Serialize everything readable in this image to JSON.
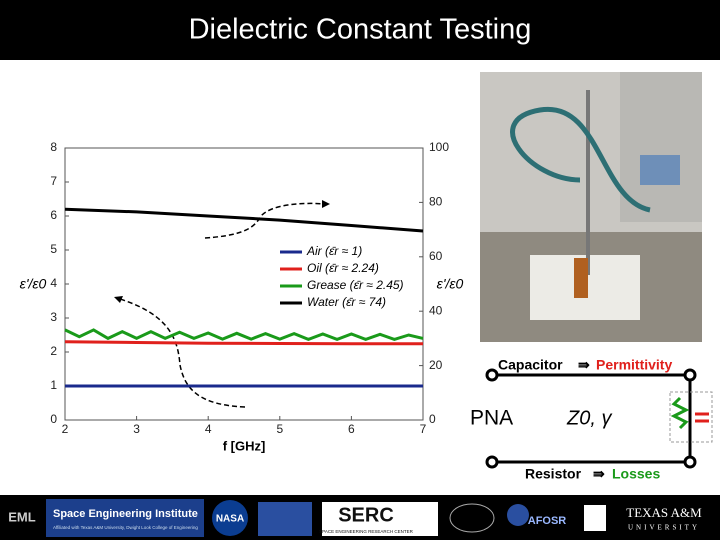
{
  "header": {
    "title": "Dielectric Constant Testing"
  },
  "chart_data": {
    "type": "line",
    "xlabel": "f [GHz]",
    "ylabel": "ε'/ε0",
    "y2label": "ε'/ε0",
    "xlim": [
      2,
      7
    ],
    "xticks": [
      2,
      3,
      4,
      5,
      6,
      7
    ],
    "ylim": [
      0,
      8
    ],
    "yticks": [
      0,
      1,
      2,
      3,
      4,
      5,
      6,
      7,
      8
    ],
    "y2lim": [
      0,
      100
    ],
    "y2ticks": [
      0,
      20,
      40,
      60,
      80,
      100
    ],
    "series": [
      {
        "name": "Air (ε̄r ≈ 1)",
        "color": "#1a2a8c",
        "x": [
          2,
          3,
          4,
          5,
          6,
          7
        ],
        "values": [
          1,
          1,
          1,
          1,
          1,
          1
        ]
      },
      {
        "name": "Oil (ε̄r ≈ 2.24)",
        "color": "#e0201c",
        "x": [
          2,
          3,
          4,
          5,
          6,
          7
        ],
        "values": [
          2.3,
          2.28,
          2.26,
          2.25,
          2.24,
          2.24
        ]
      },
      {
        "name": "Grease (ε̄r ≈ 2.45)",
        "color": "#1a9a1a",
        "x": [
          2,
          2.2,
          2.4,
          2.6,
          2.8,
          3,
          3.2,
          3.4,
          3.6,
          3.8,
          4,
          4.2,
          4.4,
          4.6,
          4.8,
          5,
          5.2,
          5.4,
          5.6,
          5.8,
          6,
          6.2,
          6.4,
          6.6,
          6.8,
          7
        ],
        "values": [
          2.65,
          2.45,
          2.65,
          2.4,
          2.6,
          2.4,
          2.6,
          2.4,
          2.58,
          2.4,
          2.56,
          2.38,
          2.55,
          2.38,
          2.54,
          2.38,
          2.54,
          2.37,
          2.53,
          2.37,
          2.53,
          2.37,
          2.52,
          2.37,
          2.5,
          2.4
        ]
      },
      {
        "name": "Water (ε̄r ≈ 74)",
        "color": "#000000",
        "axis": "y2",
        "x": [
          2,
          3,
          4,
          5,
          6,
          7
        ],
        "values": [
          77.5,
          76.5,
          75,
          73.5,
          71.5,
          69.5
        ]
      }
    ]
  },
  "diagram": {
    "capacitor": "Capacitor",
    "permittivity": "Permittivity",
    "pna": "PNA",
    "impedance": "Z0, γ",
    "resistor": "Resistor",
    "losses": "Losses"
  },
  "footer": {
    "eml": "EML",
    "sei": "Space Engineering Institute",
    "sei_sub": "Affiliated with Texas A&M University, Dwight Look College of Engineering",
    "nasa": "NASA",
    "serc": "SERC",
    "serc_sub": "SPACE ENGINEERING RESEARCH CENTER",
    "afosr": "AFOSR",
    "tamu": "TEXAS A&M",
    "tamu_sub": "UNIVERSITY"
  }
}
